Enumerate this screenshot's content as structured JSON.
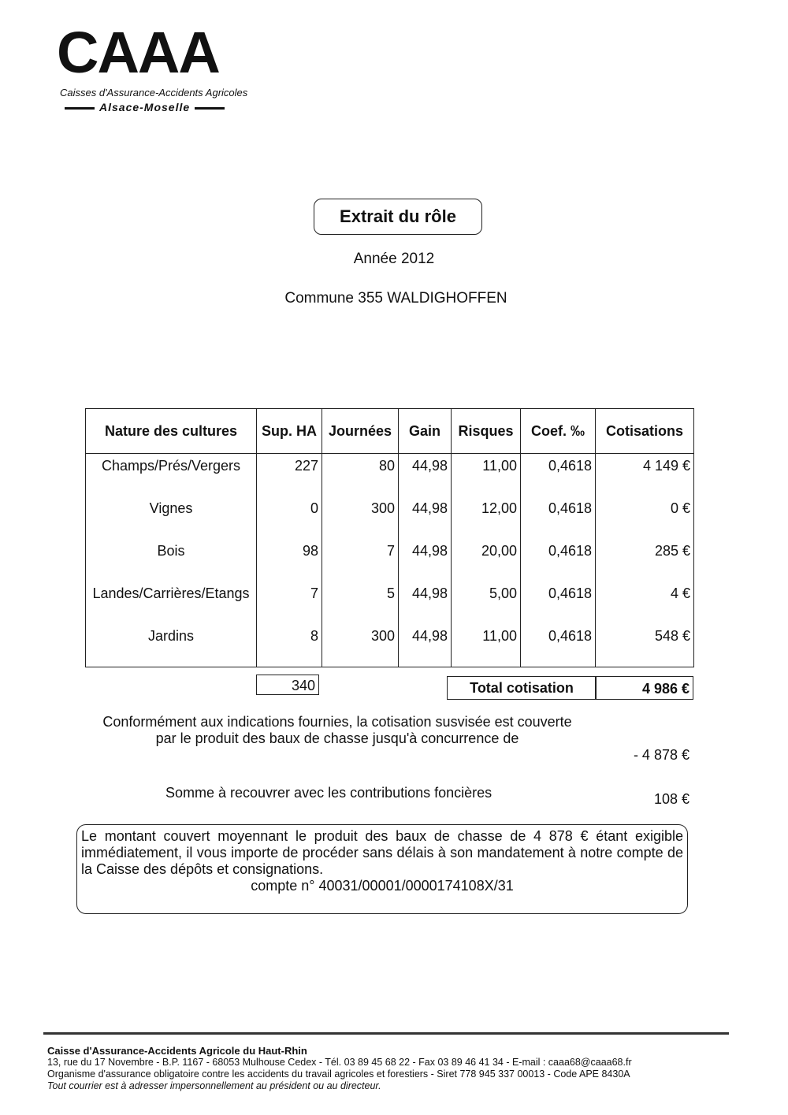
{
  "logo": {
    "mark": "CAAA",
    "subtitle": "Caisses d'Assurance-Accidents Agricoles",
    "region": "Alsace-Moselle"
  },
  "title": "Extrait du rôle",
  "year": "Année 2012",
  "commune": "Commune 355 WALDIGHOFFEN",
  "table": {
    "headers": [
      "Nature des cultures",
      "Sup. HA",
      "Journées",
      "Gain",
      "Risques",
      "Coef. ‰",
      "Cotisations"
    ],
    "rows": [
      [
        "Champs/Prés/Vergers",
        "227",
        "80",
        "44,98",
        "11,00",
        "0,4618",
        "4 149 €"
      ],
      [
        "Vignes",
        "0",
        "300",
        "44,98",
        "12,00",
        "0,4618",
        "0 €"
      ],
      [
        "Bois",
        "98",
        "7",
        "44,98",
        "20,00",
        "0,4618",
        "285 €"
      ],
      [
        "Landes/Carrières/Etangs",
        "7",
        "5",
        "44,98",
        "5,00",
        "0,4618",
        "4 €"
      ],
      [
        "Jardins",
        "8",
        "300",
        "44,98",
        "11,00",
        "0,4618",
        "548 €"
      ]
    ],
    "total_ha": "340",
    "total_label": "Total cotisation",
    "total_value": "4 986 €"
  },
  "credit": {
    "line1": "Conformément aux indications fournies, la cotisation susvisée est couverte",
    "line2": "par le produit des baux de chasse jusqu'à concurrence de",
    "value": "- 4 878 €"
  },
  "recover": {
    "label": "Somme à recouvrer avec les contributions foncières",
    "value": "108 €"
  },
  "notice": {
    "text": "Le montant couvert moyennant le produit des baux de chasse de 4 878 € étant exigible immédiatement, il vous importe de procéder sans délais à son mandatement à notre compte de la Caisse des dépôts et consignations.",
    "account": "compte n° 40031/00001/0000174108X/31"
  },
  "footer": {
    "org": "Caisse d'Assurance-Accidents Agricole du Haut-Rhin",
    "address": "13, rue du 17 Novembre - B.P. 1167 - 68053 Mulhouse Cedex - Tél. 03 89 45 68 22 - Fax 03 89 46 41 34 - E-mail : caaa68@caaa68.fr",
    "legal": "Organisme d'assurance obligatoire contre les accidents du travail agricoles et forestiers - Siret 778 945 337 00013 - Code APE 8430A",
    "note": "Tout courrier est à adresser impersonnellement au président ou au directeur."
  }
}
